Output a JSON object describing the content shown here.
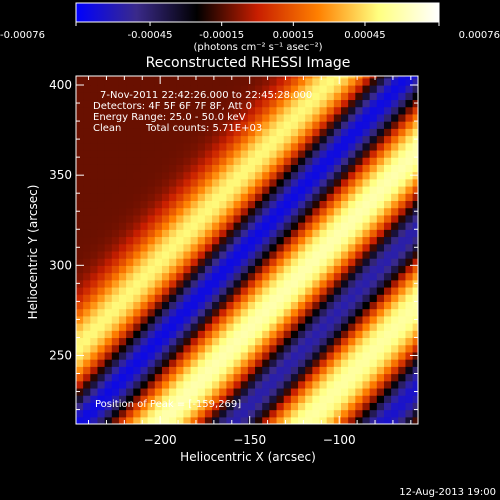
{
  "chart_data": {
    "type": "heatmap",
    "title": "Reconstructed RHESSI Image",
    "xlabel": "Heliocentric X (arcsec)",
    "ylabel": "Heliocentric Y (arcsec)",
    "xlim": [
      -247,
      -56
    ],
    "ylim": [
      212,
      405
    ],
    "x_ticks": [
      -200,
      -150,
      -100
    ],
    "y_ticks": [
      250,
      300,
      350,
      400
    ],
    "colorbar": {
      "range": [
        -0.00076,
        0.00076
      ],
      "ticks": [
        -0.00076,
        -0.00045,
        -0.00015,
        0.00015,
        0.00045,
        0.00076
      ],
      "tick_labels": [
        "-0.00076",
        "-0.00045",
        "-0.00015",
        "0.00015",
        "0.00045",
        "0.00076"
      ],
      "label": "(photons cm⁻² s⁻¹ asec⁻²)",
      "colors": [
        "#0000ff",
        "#3a2a8a",
        "#000000",
        "#c81e00",
        "#ff8000",
        "#ffff80",
        "#ffffff"
      ]
    },
    "annotations": {
      "time_range": "7-Nov-2011 22:42:26.000 to 22:45:28.000",
      "detectors": "Detectors: 4F 5F 6F 7F 8F, Att 0",
      "energy": "Energy Range: 25.0 - 50.0 keV",
      "method": "Clean",
      "counts": "Total counts: 5.71E+03",
      "peak": "Position of Peak = [-159,269]"
    },
    "peak_position": [
      -159,
      269
    ],
    "field": {
      "description_free": true,
      "stripe_direction": [
        1,
        1
      ],
      "bands": [
        {
          "offset": -210,
          "width": 16,
          "amplitude": 0.00076
        },
        {
          "offset": -120,
          "width": 20,
          "amplitude": 0.0007
        },
        {
          "offset": -35,
          "width": 18,
          "amplitude": 0.00072
        },
        {
          "offset": 55,
          "width": 16,
          "amplitude": 0.00062
        },
        {
          "offset": -165,
          "width": 14,
          "amplitude": -0.0006
        },
        {
          "offset": -78,
          "width": 13,
          "amplitude": -0.00058
        },
        {
          "offset": 12,
          "width": 13,
          "amplitude": -0.00062
        }
      ]
    }
  },
  "footer": {
    "date": "12-Aug-2013 19:00"
  }
}
